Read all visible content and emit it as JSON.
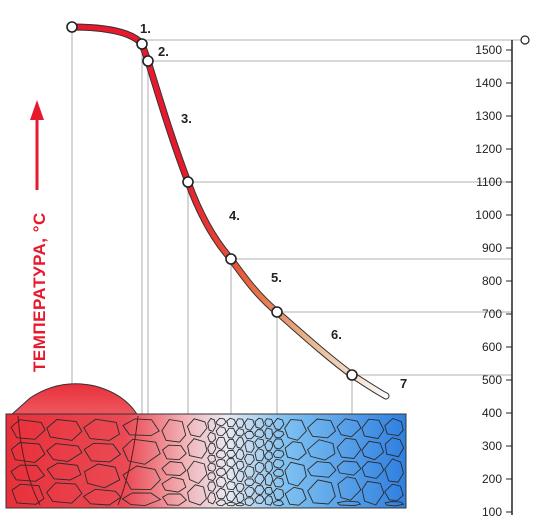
{
  "axis": {
    "label": "ТЕМПЕРАТУРА, °C",
    "ticks": [
      "1500",
      "1400",
      "1300",
      "1200",
      "1100",
      "1000",
      "900",
      "800",
      "700",
      "600",
      "500",
      "400",
      "300",
      "200",
      "100"
    ]
  },
  "zones": [
    "1.",
    "2.",
    "3.",
    "4.",
    "5.",
    "6.",
    "7"
  ],
  "colors": {
    "curve_hot": "#e8192c",
    "curve_cool": "#ffffff",
    "arrow": "#e8192c",
    "metal_hot": "#e8303a",
    "metal_cool": "#3a8ee6"
  }
}
